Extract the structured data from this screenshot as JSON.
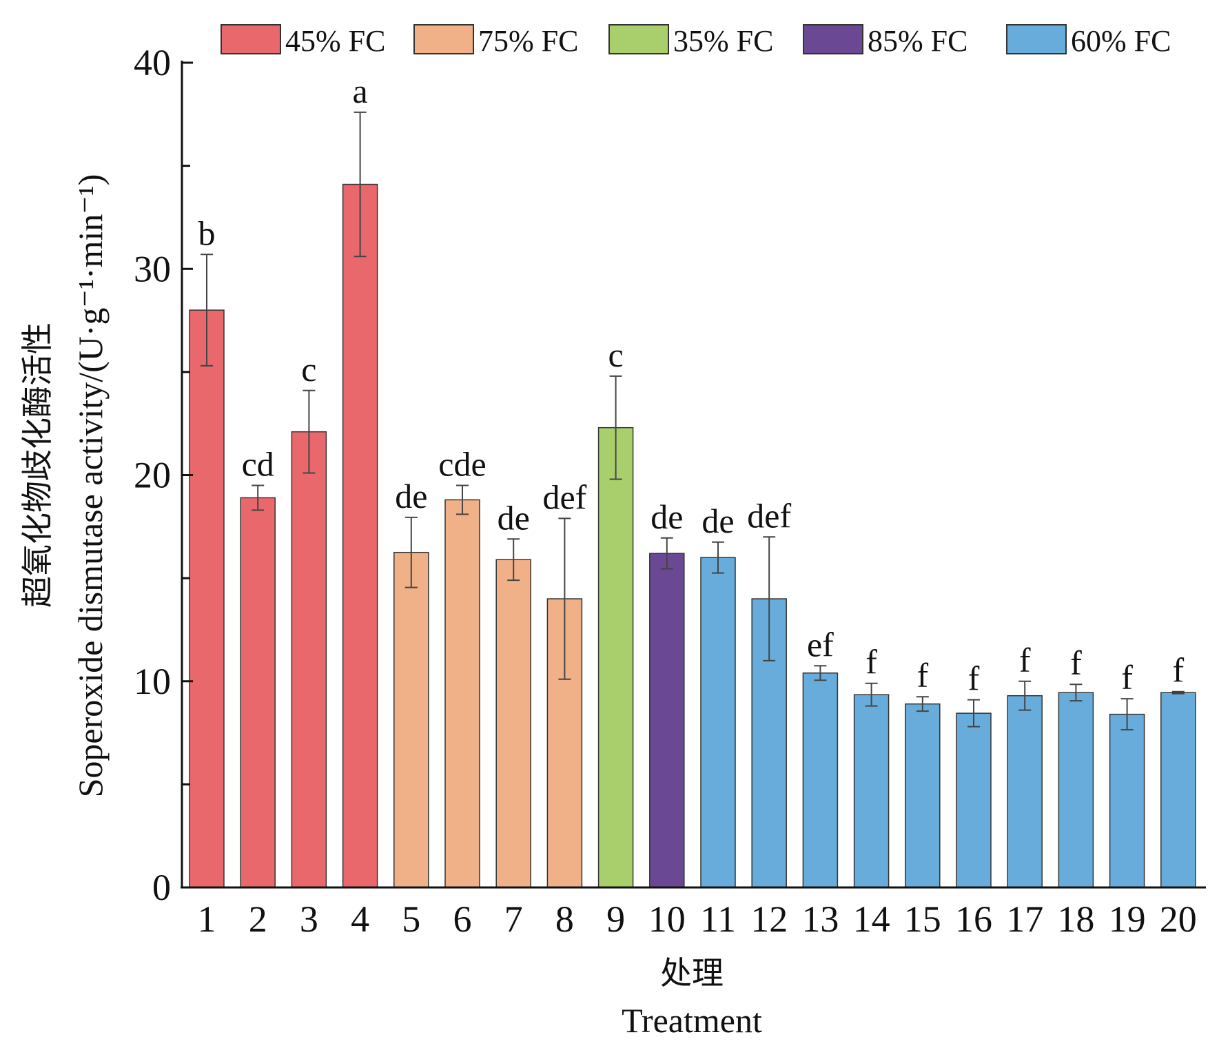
{
  "chart_data": {
    "type": "bar",
    "title": "",
    "xlabel_cn": "处理",
    "xlabel": "Treatment",
    "ylabel_cn": "超氧化物歧化酶活性",
    "ylabel": "Soperoxide dismutase activity/(U·g⁻¹·min⁻¹)",
    "ylim": [
      0,
      40
    ],
    "yticks": [
      "0",
      "10",
      "20",
      "30",
      "40"
    ],
    "categories": [
      "1",
      "2",
      "3",
      "4",
      "5",
      "6",
      "7",
      "8",
      "9",
      "10",
      "11",
      "12",
      "13",
      "14",
      "15",
      "16",
      "17",
      "18",
      "19",
      "20"
    ],
    "values": [
      28.0,
      18.9,
      22.1,
      34.1,
      16.25,
      18.8,
      15.9,
      14.0,
      22.3,
      16.2,
      16.0,
      14.0,
      10.4,
      9.35,
      8.9,
      8.45,
      9.3,
      9.45,
      8.4,
      9.45
    ],
    "errors": [
      2.7,
      0.6,
      2.0,
      3.5,
      1.7,
      0.7,
      1.0,
      3.9,
      2.5,
      0.75,
      0.75,
      3.0,
      0.35,
      0.55,
      0.35,
      0.65,
      0.7,
      0.4,
      0.75,
      0.05
    ],
    "significance": [
      "b",
      "cd",
      "c",
      "a",
      "de",
      "cde",
      "de",
      "def",
      "c",
      "de",
      "de",
      "def",
      "ef",
      "f",
      "f",
      "f",
      "f",
      "f",
      "f",
      "f"
    ],
    "groups": [
      "45% FC",
      "45% FC",
      "45% FC",
      "45% FC",
      "75% FC",
      "75% FC",
      "75% FC",
      "75% FC",
      "35% FC",
      "85% FC",
      "60% FC",
      "60% FC",
      "60% FC",
      "60% FC",
      "60% FC",
      "60% FC",
      "60% FC",
      "60% FC",
      "60% FC",
      "60% FC"
    ],
    "legend": [
      {
        "label": "45% FC",
        "color": "#e9686c"
      },
      {
        "label": "75% FC",
        "color": "#f0b088"
      },
      {
        "label": "35% FC",
        "color": "#a8cf6c"
      },
      {
        "label": "85% FC",
        "color": "#6b4893"
      },
      {
        "label": "60% FC",
        "color": "#68acdb"
      }
    ],
    "legend_position": "top"
  }
}
